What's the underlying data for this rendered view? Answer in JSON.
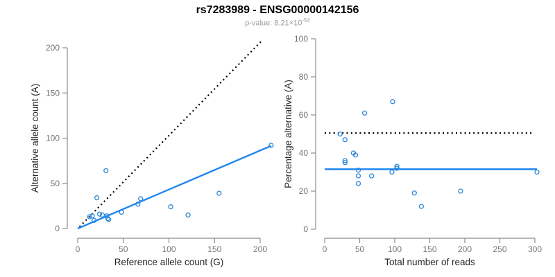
{
  "header": {
    "title": "rs7283989 - ENSG00000142156",
    "subtitle_prefix": "p-value: ",
    "p_value_mantissa": "8.21",
    "p_value_times": "×10",
    "p_value_exponent": "-54"
  },
  "colors": {
    "point": "#2d87d8",
    "regression_line": "#1e86f0",
    "dotted_line": "#000000",
    "axis": "#8c8c8c",
    "tick_label": "#737373",
    "axis_label": "#262626",
    "title": "#000000",
    "subtitle": "#9a9a9a",
    "background": "#ffffff"
  },
  "chart_data": [
    {
      "type": "scatter",
      "name": "allele-counts-scatter",
      "xlabel": "Reference allele count (G)",
      "ylabel": "Alternative allele count (A)",
      "xlim": [
        0,
        200
      ],
      "ylim": [
        0,
        200
      ],
      "xticks": [
        0,
        50,
        100,
        150,
        200
      ],
      "yticks": [
        0,
        50,
        100,
        150,
        200
      ],
      "grid": false,
      "points": [
        [
          13,
          13
        ],
        [
          16,
          14
        ],
        [
          18,
          9
        ],
        [
          21,
          34
        ],
        [
          24,
          16
        ],
        [
          27,
          15
        ],
        [
          31,
          64
        ],
        [
          32,
          14
        ],
        [
          33,
          11
        ],
        [
          34,
          10
        ],
        [
          48,
          18
        ],
        [
          66,
          27
        ],
        [
          69,
          33
        ],
        [
          102,
          24
        ],
        [
          121,
          15
        ],
        [
          155,
          39
        ],
        [
          212,
          92
        ]
      ],
      "lines": [
        {
          "name": "identity-line",
          "style": "dotted",
          "color": "#000000",
          "points": [
            [
              2,
              2
            ],
            [
              202,
              208
            ]
          ]
        },
        {
          "name": "regression-line",
          "style": "solid",
          "color": "#1e86f0",
          "points": [
            [
              0,
              0
            ],
            [
              212,
              91.5
            ]
          ]
        }
      ]
    },
    {
      "type": "scatter",
      "name": "percentage-alternative-scatter",
      "xlabel": "Total number of reads",
      "ylabel": "Percentage alternative (A)",
      "xlim": [
        0,
        300
      ],
      "ylim": [
        0,
        100
      ],
      "xticks": [
        0,
        50,
        100,
        150,
        200,
        250,
        300
      ],
      "yticks": [
        0,
        20,
        40,
        60,
        80,
        100
      ],
      "grid": false,
      "points": [
        [
          22,
          50
        ],
        [
          29,
          47
        ],
        [
          29,
          36
        ],
        [
          29,
          35
        ],
        [
          41,
          40
        ],
        [
          44,
          39
        ],
        [
          48,
          31
        ],
        [
          48,
          28
        ],
        [
          48,
          24
        ],
        [
          57,
          61
        ],
        [
          67,
          28
        ],
        [
          96,
          30
        ],
        [
          97,
          67
        ],
        [
          103,
          33
        ],
        [
          103,
          32
        ],
        [
          128,
          19
        ],
        [
          138,
          12
        ],
        [
          194,
          20
        ],
        [
          303,
          30
        ]
      ],
      "lines": [
        {
          "name": "fifty-percent-line",
          "style": "dotted",
          "color": "#000000",
          "points": [
            [
              0,
              50.5
            ],
            [
              297,
              50.5
            ]
          ]
        },
        {
          "name": "mean-percentage-line",
          "style": "solid",
          "color": "#1e86f0",
          "points": [
            [
              0,
              31.5
            ],
            [
              303,
              31.5
            ]
          ]
        }
      ]
    }
  ]
}
